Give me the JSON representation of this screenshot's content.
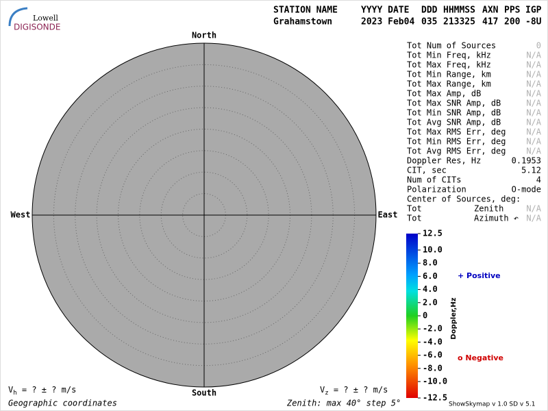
{
  "logo": {
    "top": "Lowell",
    "bottom": "DIGISONDE"
  },
  "header": {
    "fields": [
      {
        "label": "STATION NAME",
        "value": "Grahamstown"
      },
      {
        "label": "YYYY DATE",
        "value": "2023 Feb04"
      },
      {
        "label": "DDD",
        "value": "035"
      },
      {
        "label": "HHMMSS",
        "value": "213325"
      },
      {
        "label": "AXN",
        "value": "417"
      },
      {
        "label": "PPS",
        "value": "200"
      },
      {
        "label": "IGP",
        "value": "-8U"
      }
    ]
  },
  "plot": {
    "north": "North",
    "south": "South",
    "west": "West",
    "east": "East",
    "fill": "#aaaaaa"
  },
  "table": {
    "rows": [
      {
        "label": "Tot Num of Sources",
        "value": "0",
        "color": "#b0b0b0"
      },
      {
        "label": "Tot Min Freq, kHz",
        "value": "N/A",
        "color": "#b0b0b0"
      },
      {
        "label": "Tot Max Freq, kHz",
        "value": "N/A",
        "color": "#b0b0b0"
      },
      {
        "label": "Tot Min Range, km",
        "value": "N/A",
        "color": "#b0b0b0"
      },
      {
        "label": "Tot Max Range, km",
        "value": "N/A",
        "color": "#b0b0b0"
      },
      {
        "label": "Tot Max Amp, dB",
        "value": "N/A",
        "color": "#b0b0b0"
      },
      {
        "label": "Tot Max SNR Amp, dB",
        "value": "N/A",
        "color": "#b0b0b0"
      },
      {
        "label": "Tot Min SNR Amp, dB",
        "value": "N/A",
        "color": "#b0b0b0"
      },
      {
        "label": "Tot Avg SNR Amp, dB",
        "value": "N/A",
        "color": "#b0b0b0"
      },
      {
        "label": "Tot Max RMS Err, deg",
        "value": "N/A",
        "color": "#b0b0b0"
      },
      {
        "label": "Tot Min RMS Err, deg",
        "value": "N/A",
        "color": "#b0b0b0"
      },
      {
        "label": "Tot Avg RMS Err, deg",
        "value": "N/A",
        "color": "#b0b0b0"
      },
      {
        "label": "Doppler Res, Hz",
        "value": "0.1953",
        "color": "#000000"
      },
      {
        "label": "CIT, sec",
        "value": "5.12",
        "color": "#000000"
      },
      {
        "label": "Num of CITs",
        "value": "4",
        "color": "#000000"
      },
      {
        "label": "Polarization",
        "value": "O-mode",
        "color": "#000000"
      },
      {
        "label": "Center of Sources, deg:"
      },
      {
        "label": "Tot",
        "sublabel": "Zenith",
        "value": "N/A",
        "color": "#b0b0b0"
      },
      {
        "label": "Tot",
        "sublabel": "Azimuth ↶",
        "value": "N/A",
        "color": "#b0b0b0"
      }
    ]
  },
  "colorbar": {
    "title": "Doppler,Hz",
    "lim": [
      -12.5,
      12.5
    ],
    "ticks": [
      12.5,
      {
        "value": 10,
        "label": "10.0"
      },
      {
        "value": 8,
        "label": "8.0"
      },
      {
        "value": 6,
        "label": "6.0"
      },
      {
        "value": 4,
        "label": "4.0"
      },
      {
        "value": 2,
        "label": "2.0"
      },
      0,
      {
        "value": -2,
        "label": "-2.0"
      },
      {
        "value": -4,
        "label": "-4.0"
      },
      {
        "value": -6,
        "label": "-6.0"
      },
      {
        "value": -8,
        "label": "-8.0"
      },
      {
        "value": -10,
        "label": "-10.0"
      },
      -12.5
    ],
    "positive": "+ Positive",
    "negative": "o Negative"
  },
  "footer": {
    "vh": {
      "symbol": "V",
      "sub": "h",
      "text": " =  ? ±  ? m/s"
    },
    "vz": {
      "symbol": "V",
      "sub": "z",
      "text": " =  ? ±  ? m/s"
    },
    "coords": "Geographic coordinates",
    "zenith": "Zenith: max 40°  step 5°",
    "version": "ShowSkymap v 1.0  SD v 5.1"
  }
}
